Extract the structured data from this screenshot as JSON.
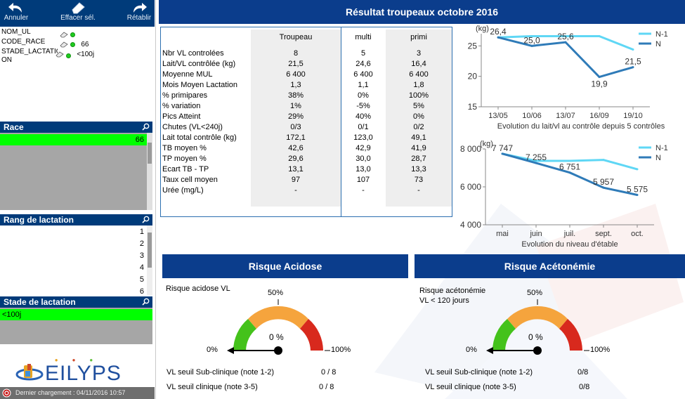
{
  "toolbar": {
    "undo_label": "Annuler",
    "clear_label": "Effacer sél.",
    "redo_label": "Rétablir"
  },
  "current_selections": [
    {
      "field": "NOM_UL",
      "value": ""
    },
    {
      "field": "CODE_RACE",
      "value": "66"
    },
    {
      "field": "STADE_LACTATION",
      "value": "<100j"
    },
    {
      "field": "ON",
      "value": ""
    }
  ],
  "listboxes": {
    "race": {
      "title": "Race",
      "items": [
        {
          "label": "66",
          "selected": true
        }
      ]
    },
    "rang": {
      "title": "Rang de lactation",
      "items": [
        "1",
        "2",
        "3",
        "4",
        "5",
        "6"
      ]
    },
    "stade": {
      "title": "Stade de lactation",
      "items": [
        {
          "label": "<100j",
          "selected": true
        }
      ]
    }
  },
  "logo": {
    "text": "EILYPS"
  },
  "status": {
    "last_load": "Dernier chargement : 04/11/2016 10:57"
  },
  "main": {
    "title": "Résultat troupeaux octobre 2016",
    "stats": {
      "headers": [
        "Troupeau",
        "multi",
        "primi"
      ],
      "rows": [
        {
          "label": "Nbr VL controlées",
          "values": [
            "8",
            "5",
            "3"
          ]
        },
        {
          "label": "Lait/VL contrôlée (kg)",
          "values": [
            "21,5",
            "24,6",
            "16,4"
          ]
        },
        {
          "label": "Moyenne MUL",
          "values": [
            "6 400",
            "6 400",
            "6 400"
          ]
        },
        {
          "label": "Mois Moyen Lactation",
          "values": [
            "1,3",
            "1,1",
            "1,8"
          ]
        },
        {
          "label": "% primipares",
          "values": [
            "38%",
            "0%",
            "100%"
          ]
        },
        {
          "label": "% variation",
          "values": [
            "1%",
            "-5%",
            "5%"
          ]
        },
        {
          "label": "Pics Atteint",
          "values": [
            "29%",
            "40%",
            "0%"
          ]
        },
        {
          "label": "Chutes (VL<240j)",
          "values": [
            "0/3",
            "0/1",
            "0/2"
          ]
        },
        {
          "label": "Lait total contrôle (kg)",
          "values": [
            "172,1",
            "123,0",
            "49,1"
          ]
        },
        {
          "label": "TB moyen %",
          "values": [
            "42,6",
            "42,9",
            "41,9"
          ]
        },
        {
          "label": "TP moyen %",
          "values": [
            "29,6",
            "30,0",
            "28,7"
          ]
        },
        {
          "label": "Ecart TB - TP",
          "values": [
            "13,1",
            "13,0",
            "13,3"
          ]
        },
        {
          "label": "Taux cell moyen",
          "values": [
            "97",
            "107",
            "73"
          ]
        },
        {
          "label": "Urée  (mg/L)",
          "values": [
            "-",
            "-",
            "-"
          ]
        }
      ]
    },
    "acidose": {
      "title": "Risque Acidose",
      "subtitle_1": "Risque acidose VL",
      "subtitle_2": "",
      "value_label": "0 %",
      "value": 0,
      "label_min": "0%",
      "label_mid": "50%",
      "label_max": "100%",
      "line1_label": "VL seuil Sub-clinique (note 1-2)",
      "line1_value": "0 / 8",
      "line2_label": "VL seuil clinique (note 3-5)",
      "line2_value": "0 / 8"
    },
    "acetonemie": {
      "title": "Risque Acétonémie",
      "subtitle_1": "Risque acétonémie",
      "subtitle_2": "VL < 120 jours",
      "value_label": "0 %",
      "value": 0,
      "label_min": "0%",
      "label_mid": "50%",
      "label_max": "100%",
      "line1_label": "VL seuil Sub-clinique (note 1-2)",
      "line1_value": "0/8",
      "line2_label": "VL seuil clinique (note 3-5)",
      "line2_value": "0/8"
    }
  },
  "colors": {
    "dark_blue": "#0b3d8c",
    "toolbar_blue": "#003b7a",
    "selected_green": "#00ff00",
    "line_n": "#2f7bb8",
    "line_n1": "#5fd7f5",
    "gauge_green": "#44c21b",
    "gauge_orange": "#f5a43d",
    "gauge_red": "#d8291d"
  },
  "chart_data": [
    {
      "type": "line",
      "title": "",
      "xlabel": "Evolution du lait/vl au contrôle depuis 5 contrôles",
      "ylabel": "(kg)",
      "categories": [
        "13/05",
        "10/06",
        "13/07",
        "16/09",
        "19/10"
      ],
      "ylim": [
        15,
        27
      ],
      "yticks": [
        "15",
        "20",
        "25"
      ],
      "series": [
        {
          "name": "N-1",
          "values": [
            26.4,
            26.6,
            26.6,
            26.6,
            24.4
          ],
          "data_labels": []
        },
        {
          "name": "N",
          "values": [
            26.4,
            25.0,
            25.6,
            19.9,
            21.5
          ],
          "data_labels": [
            "26,4",
            "25,0",
            "25,6",
            "19,9",
            "21,5"
          ]
        }
      ],
      "legend": "top-right"
    },
    {
      "type": "line",
      "title": "",
      "xlabel": "Evolution du niveau d'étable",
      "ylabel": "(kg)",
      "categories": [
        "mai",
        "juin",
        "juil.",
        "sept.",
        "oct."
      ],
      "ylim": [
        4000,
        8000
      ],
      "yticks": [
        "4 000",
        "6 000",
        "8 000"
      ],
      "series": [
        {
          "name": "N-1",
          "values": [
            7747,
            7370,
            7370,
            7420,
            6930
          ],
          "data_labels": []
        },
        {
          "name": "N",
          "values": [
            7747,
            7255,
            6751,
            5957,
            5575
          ],
          "data_labels": [
            "7 747",
            "7 255",
            "6 751",
            "5 957",
            "5 575"
          ]
        }
      ],
      "legend": "top-right"
    }
  ]
}
